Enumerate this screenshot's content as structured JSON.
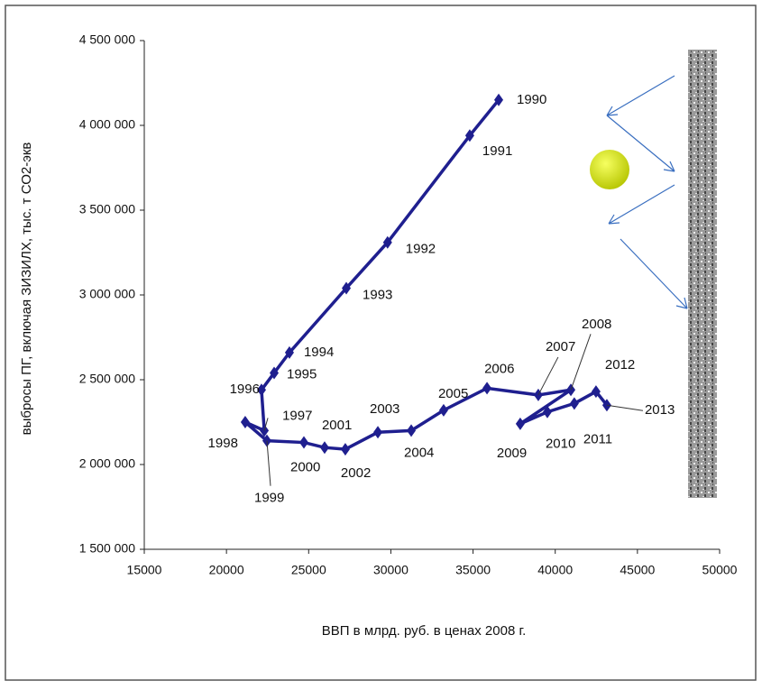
{
  "chart_data": {
    "type": "scatter",
    "x_label": "ВВП в млрд. руб. в ценах 2008 г.",
    "y_label": "выбросы ПГ, включая ЗИЗИЛХ, тыс. т СО2-экв",
    "xlim": [
      15000,
      50000
    ],
    "xticks": [
      15000,
      20000,
      25000,
      30000,
      35000,
      40000,
      45000,
      50000
    ],
    "ylim": [
      1500000,
      4500000
    ],
    "yticks": [
      {
        "value": 1500000,
        "label": "1 500 000"
      },
      {
        "value": 2000000,
        "label": "2 000 000"
      },
      {
        "value": 2500000,
        "label": "2 500 000"
      },
      {
        "value": 3000000,
        "label": "3 000 000"
      },
      {
        "value": 3500000,
        "label": "3 500 000"
      },
      {
        "value": 4000000,
        "label": "4 000 000"
      },
      {
        "value": 4500000,
        "label": "4 500 000"
      }
    ],
    "color": "#1f1f8f",
    "labels": [
      "1990",
      "1991",
      "1992",
      "1993",
      "1994",
      "1995",
      "1996",
      "1997",
      "1998",
      "1999",
      "2000",
      "2001",
      "2002",
      "2003",
      "2004",
      "2005",
      "2006",
      "2007",
      "2008",
      "2009",
      "2010",
      "2011",
      "2012",
      "2013"
    ],
    "x": [
      36560,
      34800,
      29800,
      27290,
      23830,
      22900,
      22130,
      22300,
      21140,
      22460,
      24710,
      25970,
      27230,
      29210,
      31240,
      33210,
      35850,
      38970,
      40950,
      37870,
      39520,
      41160,
      42480,
      43140
    ],
    "values": [
      4150000,
      3940000,
      3310000,
      3040000,
      2660000,
      2540000,
      2440000,
      2200000,
      2250000,
      2140000,
      2130000,
      2100000,
      2090000,
      2190000,
      2200000,
      2320000,
      2450000,
      2410000,
      2440000,
      2240000,
      2310000,
      2360000,
      2430000,
      2350000
    ]
  }
}
